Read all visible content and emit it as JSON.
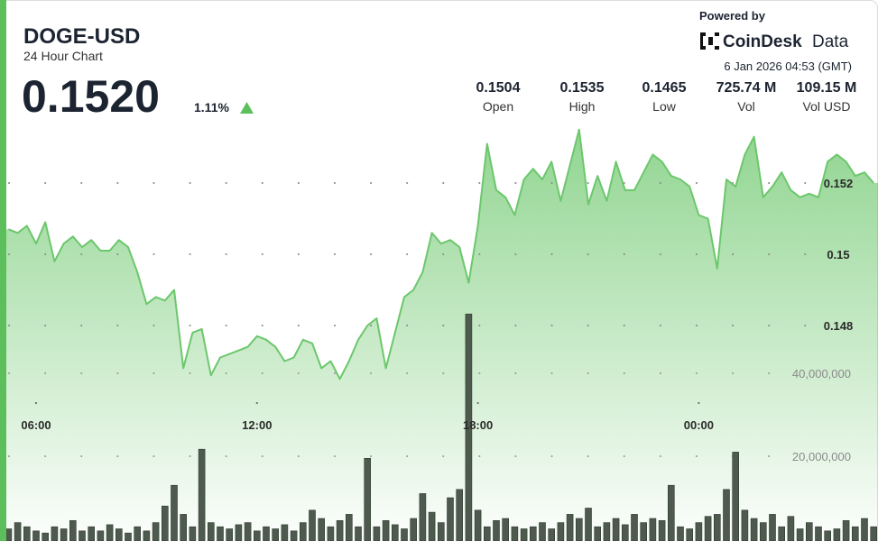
{
  "header": {
    "title": "DOGE-USD",
    "subtitle": "24 Hour Chart",
    "price": "0.1520",
    "change": "1.11%"
  },
  "stats": [
    {
      "value": "0.1504",
      "label": "Open"
    },
    {
      "value": "0.1535",
      "label": "High"
    },
    {
      "value": "0.1465",
      "label": "Low"
    },
    {
      "value": "725.74 M",
      "label": "Vol"
    },
    {
      "value": "109.15 M",
      "label": "Vol USD"
    }
  ],
  "branding": {
    "powered_by": "Powered by",
    "logo_bold": "CoinDesk",
    "logo_light": "Data",
    "timestamp": "6 Jan 2026 04:53 (GMT)"
  },
  "chart_data": {
    "type": "area",
    "x": [
      "05:15",
      "05:30",
      "05:45",
      "06:00",
      "06:15",
      "06:30",
      "06:45",
      "07:00",
      "07:15",
      "07:30",
      "07:45",
      "08:00",
      "08:15",
      "08:30",
      "08:45",
      "09:00",
      "09:15",
      "09:30",
      "09:45",
      "10:00",
      "10:15",
      "10:30",
      "10:45",
      "11:00",
      "11:15",
      "11:30",
      "11:45",
      "12:00",
      "12:15",
      "12:30",
      "12:45",
      "13:00",
      "13:15",
      "13:30",
      "13:45",
      "14:00",
      "14:15",
      "14:30",
      "14:45",
      "15:00",
      "15:15",
      "15:30",
      "15:45",
      "16:00",
      "16:15",
      "16:30",
      "16:45",
      "17:00",
      "17:15",
      "17:30",
      "17:45",
      "18:00",
      "18:15",
      "18:30",
      "18:45",
      "19:00",
      "19:15",
      "19:30",
      "19:45",
      "20:00",
      "20:15",
      "20:30",
      "20:45",
      "21:00",
      "21:15",
      "21:30",
      "21:45",
      "22:00",
      "22:15",
      "22:30",
      "22:45",
      "23:00",
      "23:15",
      "23:30",
      "23:45",
      "00:00",
      "00:15",
      "00:30",
      "00:45",
      "01:00",
      "01:15",
      "01:30",
      "01:45",
      "02:00",
      "02:15",
      "02:30",
      "02:45",
      "03:00",
      "03:15",
      "03:30",
      "03:45",
      "04:00",
      "04:15",
      "04:30",
      "04:45"
    ],
    "series": [
      {
        "color": "#6cc76c",
        "values": [
          0.1507,
          0.1506,
          0.1508,
          0.1503,
          0.1509,
          0.1498,
          0.1503,
          0.1505,
          0.1502,
          0.1504,
          0.1501,
          0.1501,
          0.1504,
          0.1502,
          0.1495,
          0.1486,
          0.1488,
          0.1487,
          0.149,
          0.1468,
          0.1478,
          0.1479,
          0.1466,
          0.1471,
          0.1472,
          0.1473,
          0.1474,
          0.1477,
          0.1476,
          0.1474,
          0.147,
          0.1471,
          0.1476,
          0.1475,
          0.1468,
          0.147,
          0.1465,
          0.147,
          0.1476,
          0.148,
          0.1482,
          0.1468,
          0.1478,
          0.1488,
          0.149,
          0.1495,
          0.1506,
          0.1503,
          0.1504,
          0.1502,
          0.1492,
          0.1508,
          0.1531,
          0.1518,
          0.1516,
          0.1511,
          0.1521,
          0.1524,
          0.1521,
          0.1526,
          0.1515,
          0.1525,
          0.1535,
          0.1514,
          0.1522,
          0.1515,
          0.1526,
          0.1518,
          0.1518,
          0.1523,
          0.1528,
          0.1526,
          0.1522,
          0.1521,
          0.1519,
          0.1511,
          0.151,
          0.1496,
          0.1521,
          0.1519,
          0.1528,
          0.1533,
          0.1516,
          0.1519,
          0.1523,
          0.1518,
          0.1516,
          0.1517,
          0.1516,
          0.1526,
          0.1528,
          0.1526,
          0.1522,
          0.1523,
          0.152
        ]
      },
      {
        "type": "bar",
        "axis": "y2",
        "color": "#4d5a4d",
        "values": [
          2500000,
          4000000,
          3000000,
          2000000,
          1500000,
          3000000,
          2500000,
          4500000,
          2000000,
          3000000,
          2000000,
          3500000,
          2500000,
          1500000,
          3000000,
          2000000,
          4000000,
          8000000,
          13000000,
          6000000,
          3000000,
          21700000,
          4000000,
          3000000,
          2500000,
          3500000,
          4000000,
          2000000,
          3000000,
          2500000,
          3500000,
          2000000,
          4000000,
          7000000,
          5000000,
          3000000,
          4500000,
          6000000,
          3000000,
          19500000,
          3000000,
          4500000,
          3500000,
          2500000,
          5000000,
          11000000,
          6500000,
          4000000,
          10000000,
          12000000,
          54300000,
          7000000,
          3000000,
          4500000,
          5000000,
          3000000,
          2500000,
          3000000,
          4000000,
          2500000,
          4000000,
          6000000,
          5000000,
          7500000,
          3000000,
          4000000,
          5000000,
          3500000,
          6000000,
          4000000,
          5000000,
          4500000,
          13000000,
          3000000,
          2500000,
          4000000,
          5500000,
          6000000,
          12000000,
          21000000,
          7000000,
          5000000,
          4000000,
          6000000,
          3000000,
          5500000,
          2500000,
          4000000,
          3000000,
          2000000,
          2500000,
          4500000,
          3000000,
          5000000,
          3000000
        ]
      }
    ],
    "ylim": [
      0.142,
      0.157
    ],
    "yticks": [
      0.148,
      0.15,
      0.152
    ],
    "y2lim": [
      0,
      130000000
    ],
    "y2ticks": [
      {
        "value": 20000000,
        "label": "20,000,000"
      },
      {
        "value": 40000000,
        "label": "40,000,000"
      }
    ],
    "xticks": [
      "06:00",
      "12:00",
      "18:00",
      "00:00"
    ],
    "grid": true
  }
}
